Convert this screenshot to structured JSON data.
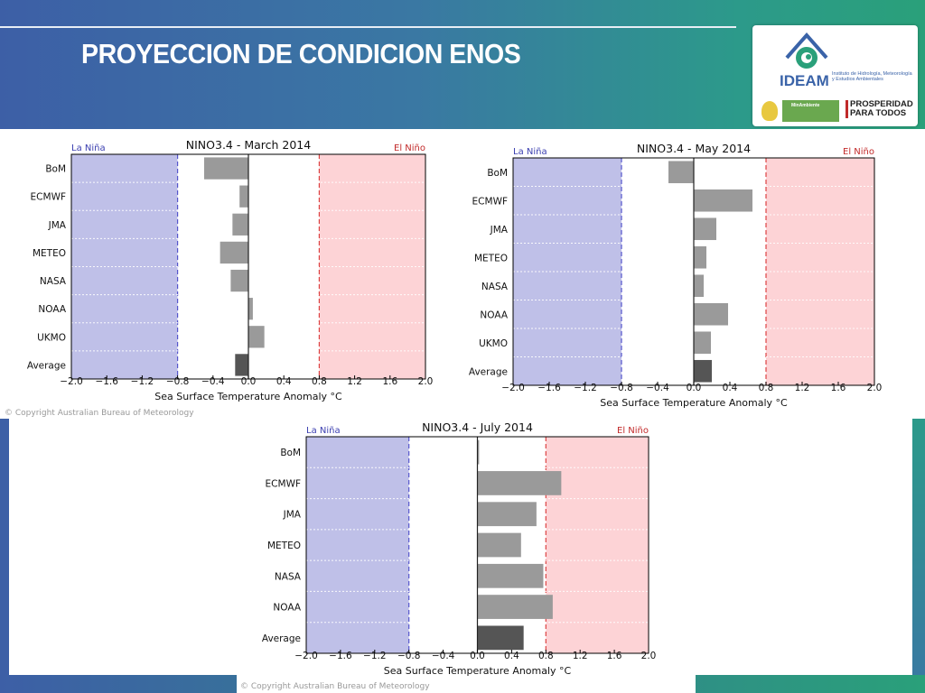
{
  "slide": {
    "title": "PROYECCION DE CONDICION ENOS",
    "logo": {
      "name": "IDEAM",
      "description": "Instituto de Hidrología, Meteorología y Estudios Ambientales",
      "ministry": "MinAmbiente",
      "slogan": "PROSPERIDAD PARA TODOS"
    },
    "copyright": "© Copyright Australian Bureau of Meteorology"
  },
  "colors": {
    "la_nina_fill": "#bfc0e8",
    "el_nino_fill": "#fdd3d6",
    "la_nina_text": "#3b3fb0",
    "el_nino_text": "#c22a2a",
    "model_bar": "#9a9a9a",
    "average_bar": "#555555"
  },
  "chart_data": [
    {
      "type": "bar",
      "orientation": "horizontal",
      "title": "NINO3.4 - March 2014",
      "left_label": "La Niña",
      "right_label": "El Niño",
      "xlabel": "Sea Surface Temperature Anomaly °C",
      "xlim": [
        -2.0,
        2.0
      ],
      "xticks": [
        "−2.0",
        "−1.6",
        "−1.2",
        "−0.8",
        "−0.4",
        "0.0",
        "0.4",
        "0.8",
        "1.2",
        "1.6",
        "2.0"
      ],
      "thresholds": [
        -0.8,
        0.8
      ],
      "categories": [
        "BoM",
        "ECMWF",
        "JMA",
        "METEO",
        "NASA",
        "NOAA",
        "UKMO",
        "Average"
      ],
      "values": [
        -0.5,
        -0.1,
        -0.18,
        -0.32,
        -0.2,
        0.05,
        0.18,
        -0.15
      ]
    },
    {
      "type": "bar",
      "orientation": "horizontal",
      "title": "NINO3.4 - May 2014",
      "left_label": "La Niña",
      "right_label": "El Niño",
      "xlabel": "Sea Surface Temperature Anomaly °C",
      "xlim": [
        -2.0,
        2.0
      ],
      "xticks": [
        "−2.0",
        "−1.6",
        "−1.2",
        "−0.8",
        "−0.4",
        "0.0",
        "0.4",
        "0.8",
        "1.2",
        "1.6",
        "2.0"
      ],
      "thresholds": [
        -0.8,
        0.8
      ],
      "categories": [
        "BoM",
        "ECMWF",
        "JMA",
        "METEO",
        "NASA",
        "NOAA",
        "UKMO",
        "Average"
      ],
      "values": [
        -0.28,
        0.65,
        0.25,
        0.14,
        0.11,
        0.38,
        0.19,
        0.2
      ]
    },
    {
      "type": "bar",
      "orientation": "horizontal",
      "title": "NINO3.4 - July 2014",
      "left_label": "La Niña",
      "right_label": "El Niño",
      "xlabel": "Sea Surface Temperature Anomaly °C",
      "xlim": [
        -2.0,
        2.0
      ],
      "xticks": [
        "−2.0",
        "−1.6",
        "−1.2",
        "−0.8",
        "−0.4",
        "0.0",
        "0.4",
        "0.8",
        "1.2",
        "1.6",
        "2.0"
      ],
      "thresholds": [
        -0.8,
        0.8
      ],
      "categories": [
        "BoM",
        "ECMWF",
        "JMA",
        "METEO",
        "NASA",
        "NOAA",
        "Average"
      ],
      "values": [
        0.02,
        0.98,
        0.69,
        0.51,
        0.77,
        0.88,
        0.54
      ]
    }
  ]
}
